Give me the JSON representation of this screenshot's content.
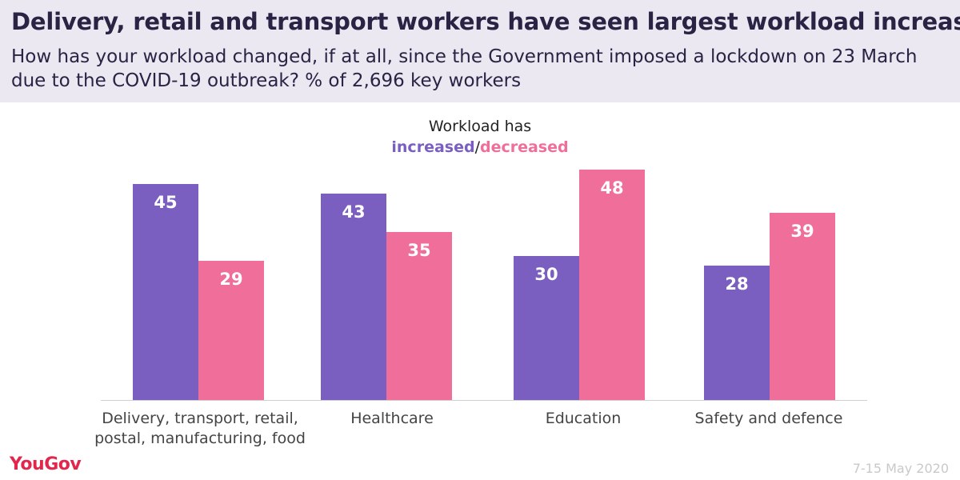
{
  "header": {
    "title": "Delivery, retail and transport workers have seen largest workload increase",
    "subtitle": "How has your workload changed, if at all, since the Government imposed a lockdown on 23 March due to the COVID-19 outbreak? % of 2,696 key workers"
  },
  "legend": {
    "line1": "Workload has",
    "increased": "increased",
    "separator": "/",
    "decreased": "decreased"
  },
  "chart_data": {
    "type": "bar",
    "title": "Delivery, retail and transport workers have seen largest workload increase",
    "categories": [
      "Delivery, transport, retail, postal, manufacturing, food",
      "Healthcare",
      "Education",
      "Safety and defence"
    ],
    "series": [
      {
        "name": "increased",
        "values": [
          45,
          43,
          30,
          28
        ],
        "color": "#7b5fc0"
      },
      {
        "name": "decreased",
        "values": [
          29,
          35,
          48,
          39
        ],
        "color": "#f06e9a"
      }
    ],
    "ylim": [
      0,
      48
    ],
    "grid": false,
    "legend": "top-center"
  },
  "categories_display": [
    {
      "line1": "Delivery, transport, retail,",
      "line2": "postal, manufacturing, food"
    },
    {
      "line1": "Healthcare",
      "line2": ""
    },
    {
      "line1": "Education",
      "line2": ""
    },
    {
      "line1": "Safety and defence",
      "line2": ""
    }
  ],
  "footer": {
    "logo": "YouGov",
    "date": "7-15 May 2020"
  }
}
